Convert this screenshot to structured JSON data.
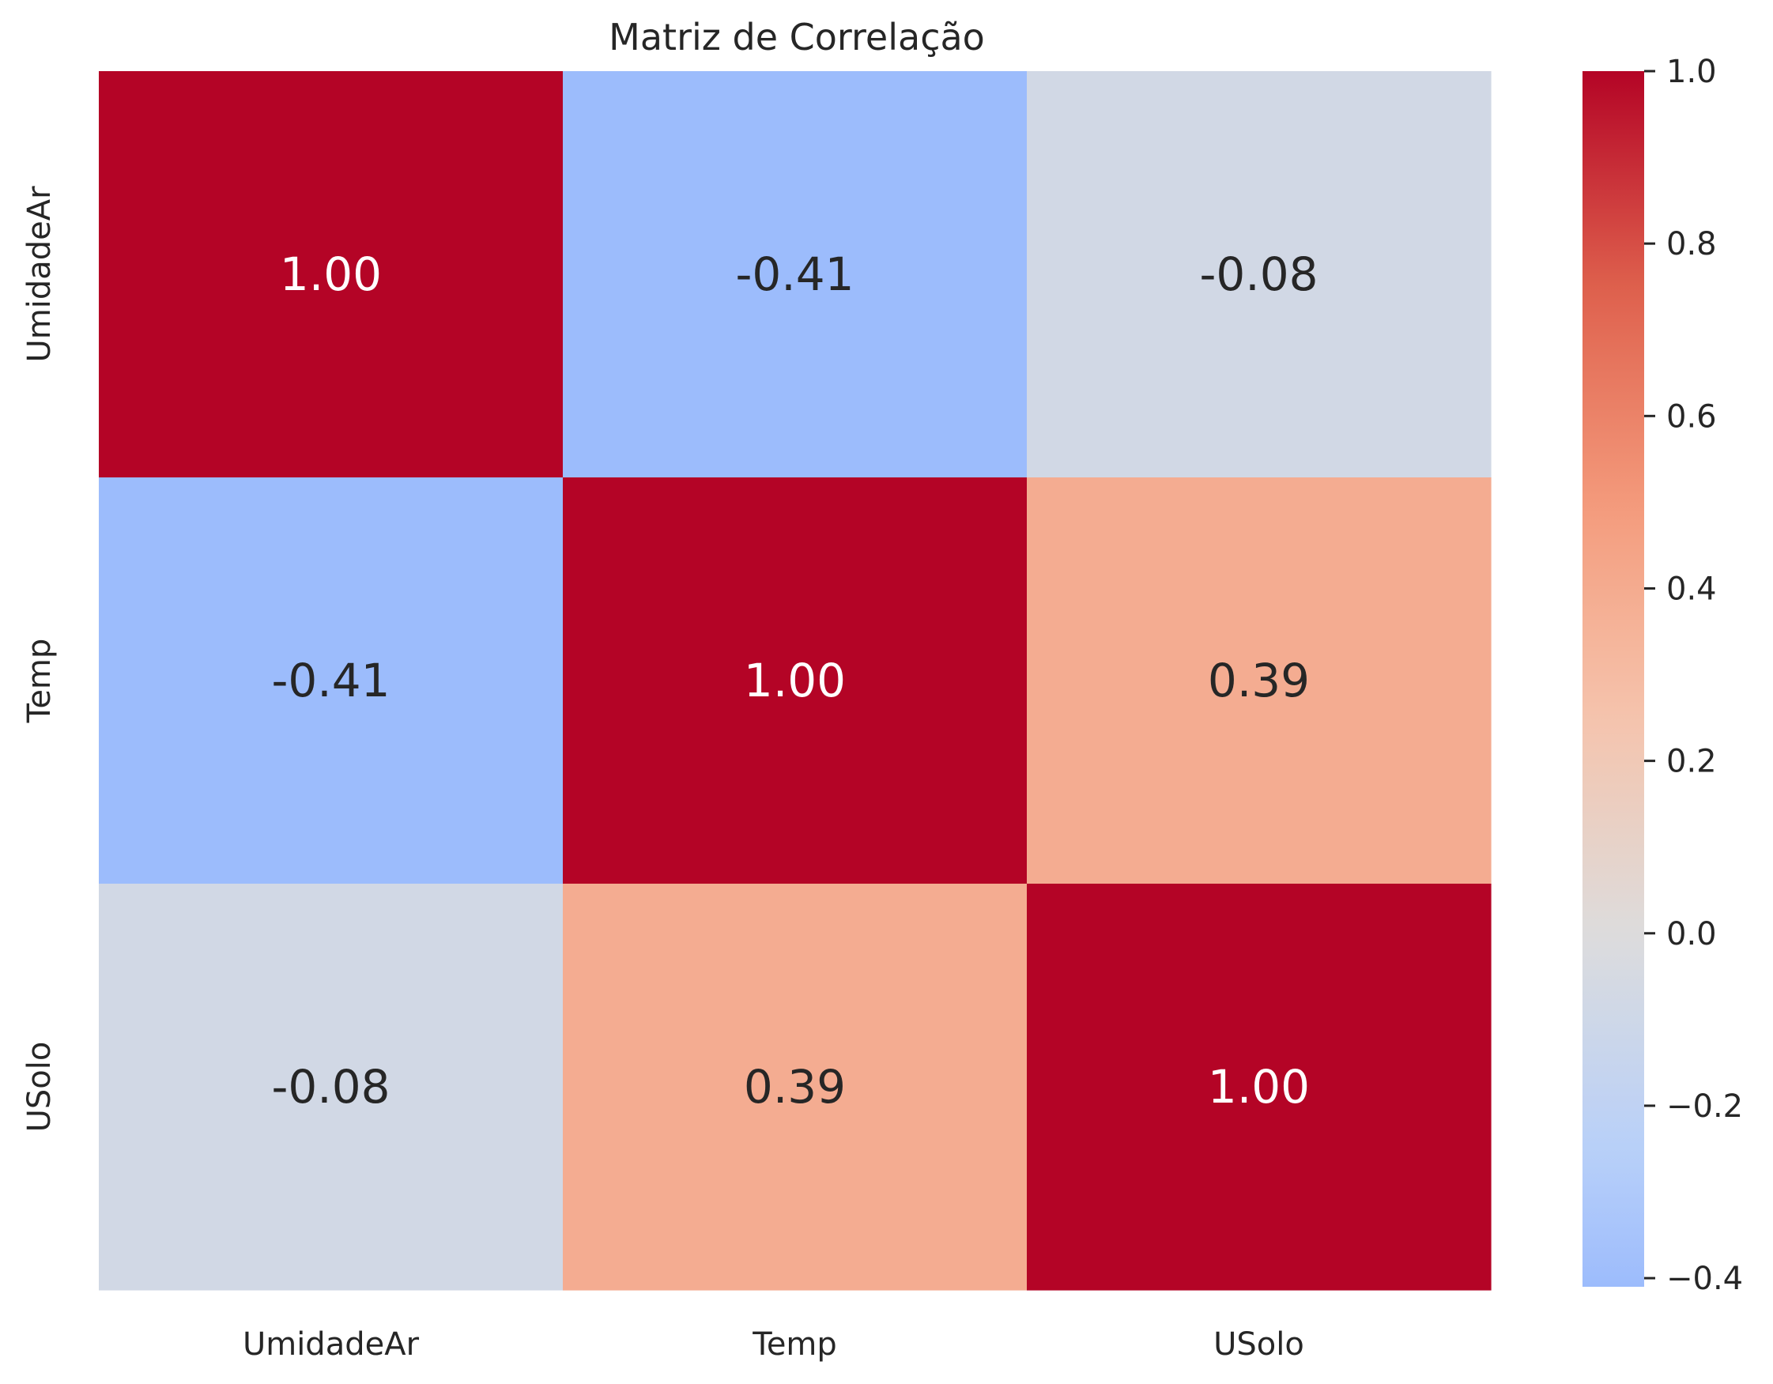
{
  "chart_data": {
    "type": "heatmap",
    "title": "Matriz de Correlação",
    "x_labels": [
      "UmidadeAr",
      "Temp",
      "USolo"
    ],
    "y_labels": [
      "UmidadeAr",
      "Temp",
      "USolo"
    ],
    "values": [
      [
        1.0,
        -0.41,
        -0.08
      ],
      [
        -0.41,
        1.0,
        0.39
      ],
      [
        -0.08,
        0.39,
        1.0
      ]
    ],
    "cell_labels": [
      [
        "1.00",
        "-0.41",
        "-0.08"
      ],
      [
        "-0.41",
        "1.00",
        "0.39"
      ],
      [
        "-0.08",
        "0.39",
        "1.00"
      ]
    ],
    "colormap": "coolwarm",
    "center": 0,
    "colorbar": {
      "range": [
        -0.41,
        1.0
      ],
      "ticks": [
        1.0,
        0.8,
        0.6,
        0.4,
        0.2,
        0.0,
        -0.2,
        -0.4
      ],
      "tick_labels": [
        "1.0",
        "0.8",
        "0.6",
        "0.4",
        "0.2",
        "0.0",
        "−0.2",
        "−0.4"
      ]
    },
    "colors": {
      "high": "#b40426",
      "low": "#3b4cc0",
      "center": "#dddddd",
      "text_dark": "#262626",
      "text_light": "#ffffff"
    }
  }
}
